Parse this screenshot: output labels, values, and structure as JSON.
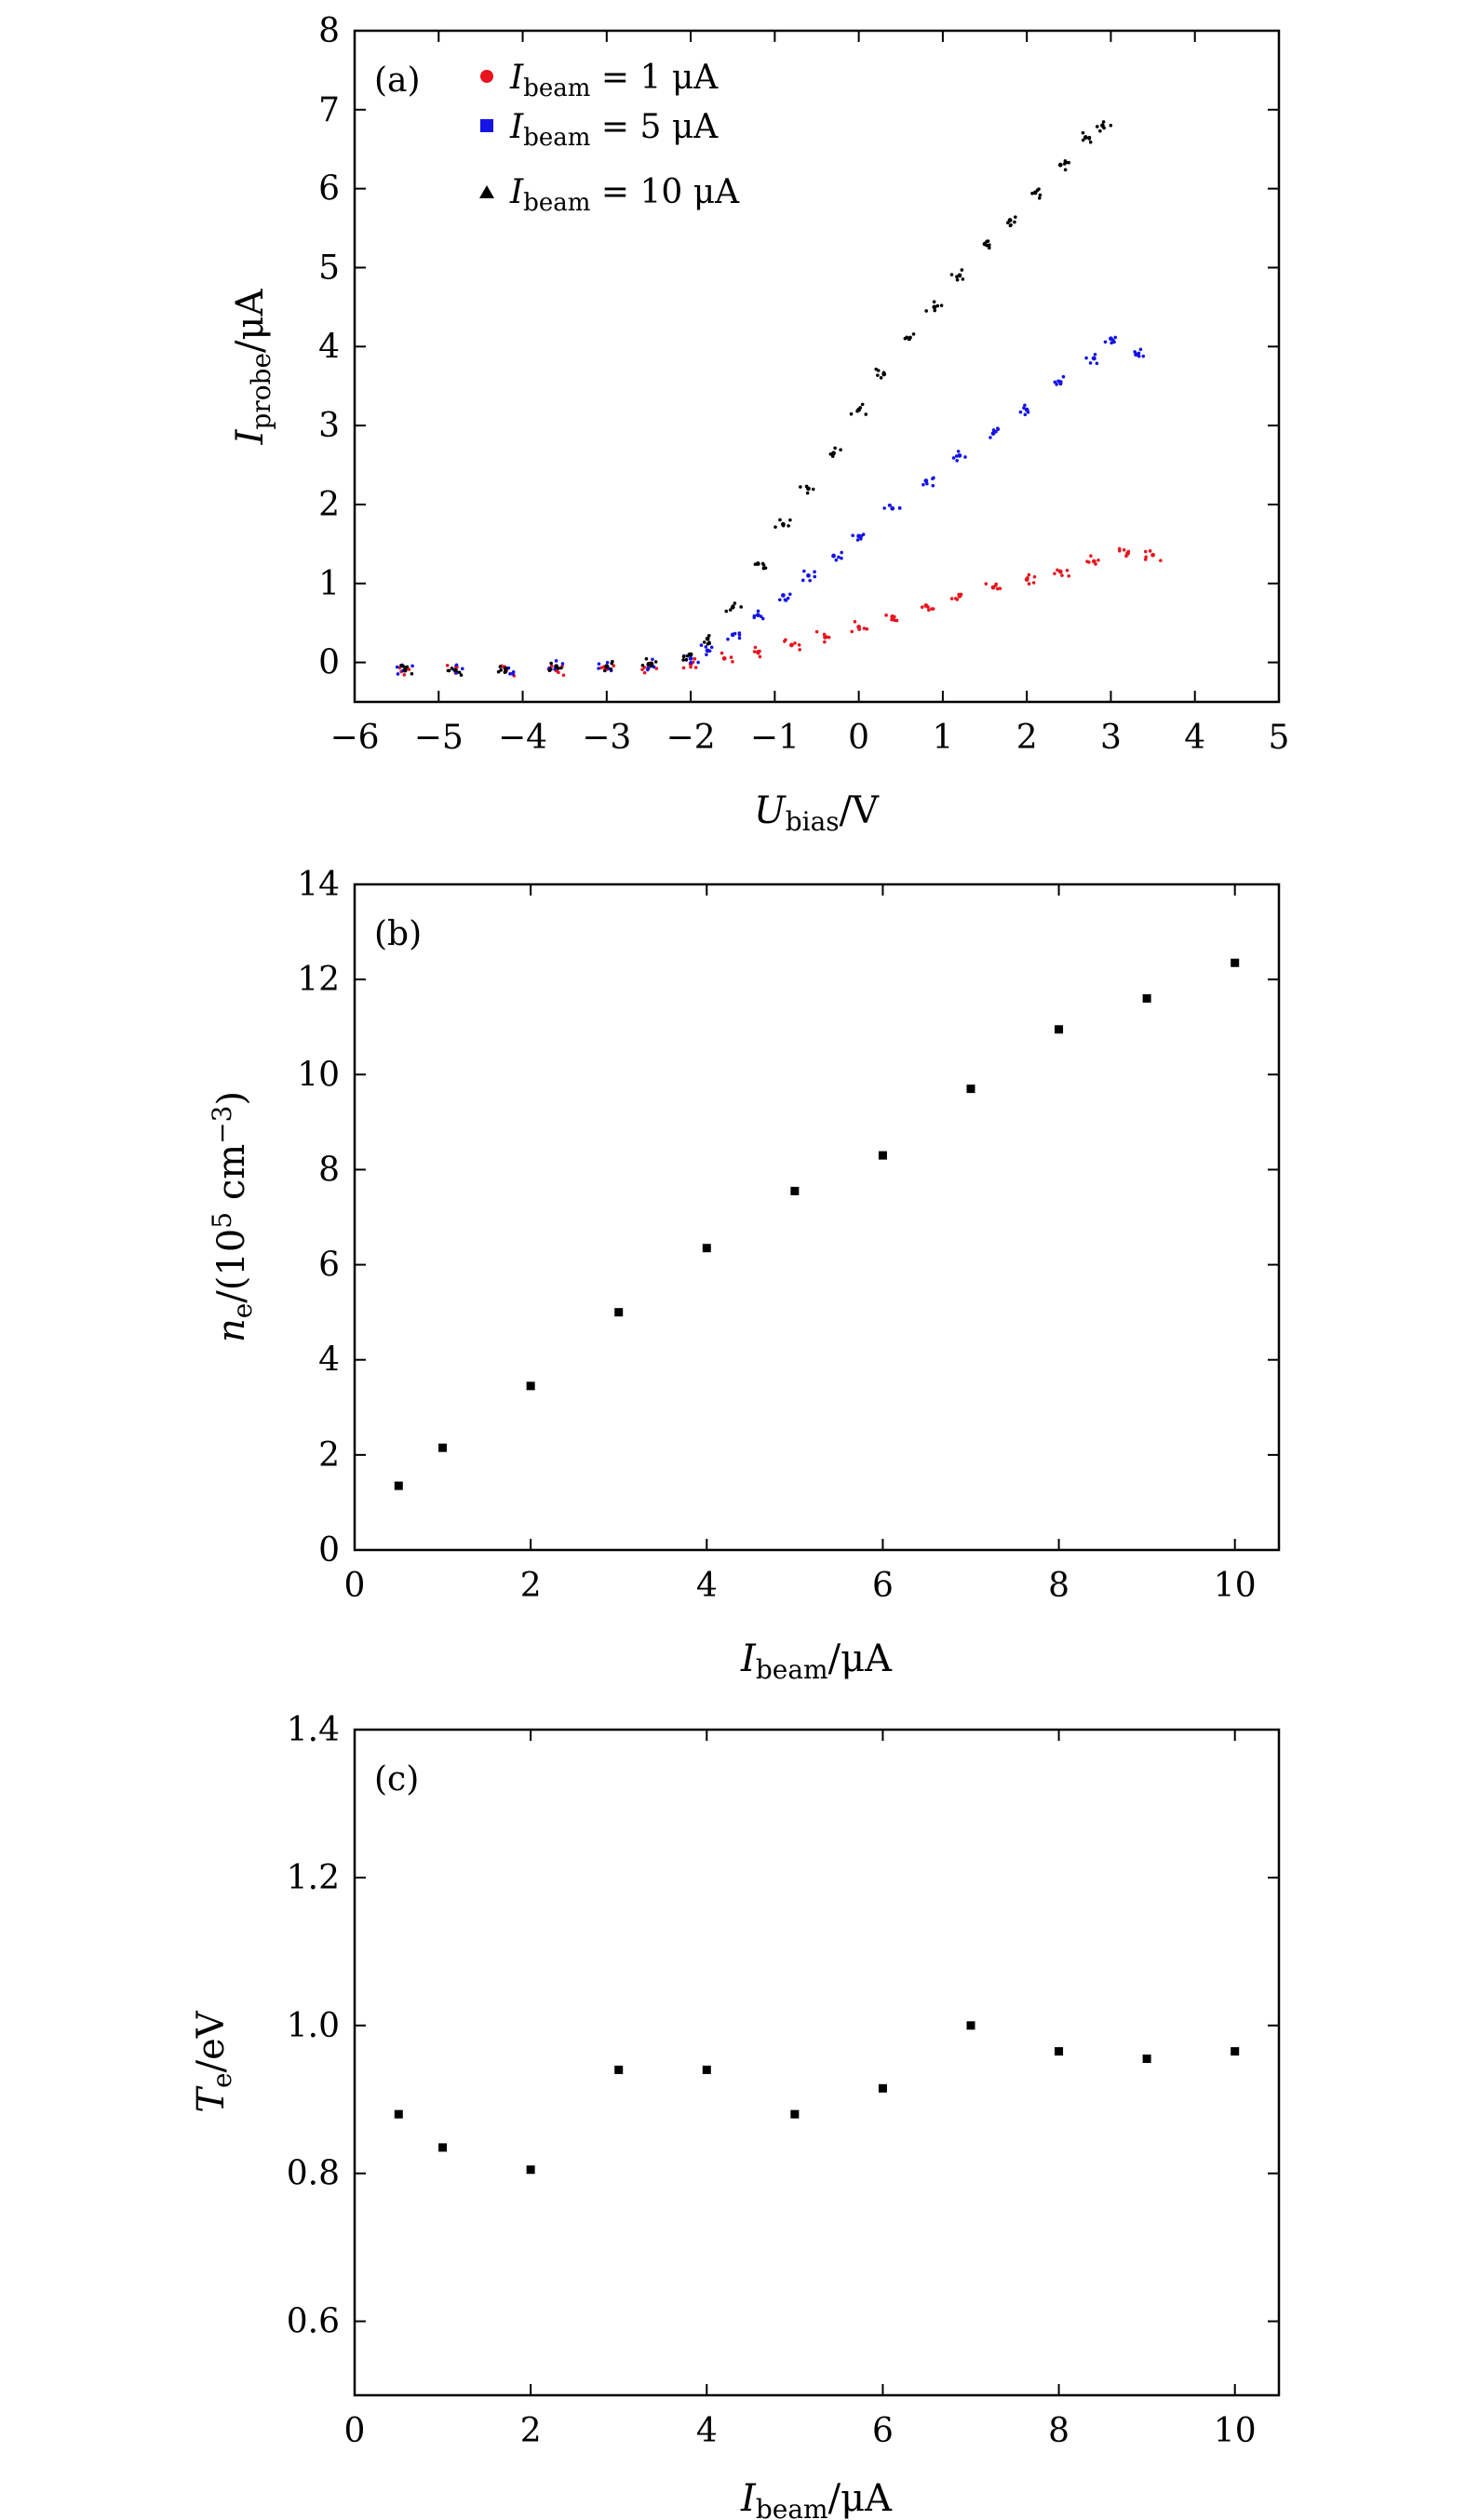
{
  "chart_data": [
    {
      "id": "a",
      "type": "scatter",
      "panel_label": "(a)",
      "xlabel": {
        "main": "U",
        "sub": "bias",
        "tail": "/V"
      },
      "ylabel": {
        "main": "I",
        "sub": "probe",
        "tail": "/μA"
      },
      "xlim": [
        -6,
        5
      ],
      "ylim": [
        -0.5,
        8
      ],
      "xticks": [
        -6,
        -5,
        -4,
        -3,
        -2,
        -1,
        0,
        1,
        2,
        3,
        4,
        5
      ],
      "xtick_labels": [
        "−6",
        "−5",
        "−4",
        "−3",
        "−2",
        "−1",
        "0",
        "1",
        "2",
        "3",
        "4",
        "5"
      ],
      "yticks": [
        0,
        1,
        2,
        3,
        4,
        5,
        6,
        7,
        8
      ],
      "ytick_labels": [
        "0",
        "1",
        "2",
        "3",
        "4",
        "5",
        "6",
        "7",
        "8"
      ],
      "legend_position": "top-left",
      "series": [
        {
          "name": "I_beam = 1 μA",
          "legend": {
            "main": "I",
            "sub": "beam",
            "tail": " = 1  μA"
          },
          "marker": "circle",
          "color": "#e8141e",
          "x": [
            -5.4,
            -4.8,
            -4.2,
            -3.6,
            -3.0,
            -2.5,
            -2.0,
            -1.6,
            -1.2,
            -0.8,
            -0.4,
            0.0,
            0.4,
            0.8,
            1.2,
            1.6,
            2.0,
            2.4,
            2.8,
            3.2,
            3.5
          ],
          "y": [
            -0.1,
            -0.1,
            -0.1,
            -0.1,
            -0.08,
            -0.06,
            -0.02,
            0.05,
            0.13,
            0.22,
            0.32,
            0.45,
            0.58,
            0.72,
            0.84,
            0.95,
            1.05,
            1.15,
            1.28,
            1.38,
            1.36
          ]
        },
        {
          "name": "I_beam = 5 μA",
          "legend": {
            "main": "I",
            "sub": "beam",
            "tail": " = 5  μA"
          },
          "marker": "square",
          "color": "#1414e6",
          "x": [
            -5.4,
            -4.8,
            -4.2,
            -3.6,
            -3.0,
            -2.5,
            -2.0,
            -1.8,
            -1.5,
            -1.2,
            -0.9,
            -0.6,
            -0.3,
            0.0,
            0.4,
            0.8,
            1.2,
            1.6,
            2.0,
            2.4,
            2.8,
            3.0,
            3.3
          ],
          "y": [
            -0.1,
            -0.1,
            -0.08,
            -0.05,
            -0.05,
            -0.03,
            0.05,
            0.15,
            0.35,
            0.6,
            0.85,
            1.1,
            1.35,
            1.6,
            1.95,
            2.3,
            2.62,
            2.9,
            3.2,
            3.55,
            3.85,
            4.1,
            3.9
          ]
        },
        {
          "name": "I_beam = 10 μA",
          "legend": {
            "main": "I",
            "sub": "beam",
            "tail": " = 10  μA"
          },
          "marker": "triangle",
          "color": "#000000",
          "x": [
            -5.4,
            -4.8,
            -4.2,
            -3.6,
            -3.0,
            -2.5,
            -2.0,
            -1.8,
            -1.5,
            -1.2,
            -0.9,
            -0.6,
            -0.3,
            0.0,
            0.3,
            0.6,
            0.9,
            1.2,
            1.5,
            1.8,
            2.1,
            2.4,
            2.7,
            2.9
          ],
          "y": [
            -0.1,
            -0.1,
            -0.08,
            -0.05,
            -0.05,
            -0.02,
            0.1,
            0.3,
            0.7,
            1.25,
            1.75,
            2.2,
            2.65,
            3.2,
            3.65,
            4.1,
            4.5,
            4.9,
            5.3,
            5.6,
            5.95,
            6.3,
            6.65,
            6.8
          ]
        }
      ]
    },
    {
      "id": "b",
      "type": "scatter",
      "panel_label": "(b)",
      "xlabel": {
        "main": "I",
        "sub": "beam",
        "tail": "/μA"
      },
      "ylabel": {
        "main": "n",
        "sub": "e",
        "mid": "/(10",
        "sup": "5",
        "tail": " cm",
        "sup2": "−3",
        "end": ")"
      },
      "xlim": [
        0,
        10.5
      ],
      "ylim": [
        0,
        14
      ],
      "xticks": [
        0,
        2,
        4,
        6,
        8,
        10
      ],
      "xtick_labels": [
        "0",
        "2",
        "4",
        "6",
        "8",
        "10"
      ],
      "yticks": [
        0,
        2,
        4,
        6,
        8,
        10,
        12,
        14
      ],
      "ytick_labels": [
        "0",
        "2",
        "4",
        "6",
        "8",
        "10",
        "12",
        "14"
      ],
      "series": [
        {
          "name": "n_e",
          "marker": "square",
          "color": "#000000",
          "x": [
            0.5,
            1,
            2,
            3,
            4,
            5,
            6,
            7,
            8,
            9,
            10
          ],
          "y": [
            1.35,
            2.15,
            3.45,
            5.0,
            6.35,
            7.55,
            8.3,
            9.7,
            10.95,
            11.6,
            12.35
          ]
        }
      ]
    },
    {
      "id": "c",
      "type": "scatter",
      "panel_label": "(c)",
      "xlabel": {
        "main": "I",
        "sub": "beam",
        "tail": "/μA"
      },
      "ylabel": {
        "main": "T",
        "sub": "e",
        "tail": "/eV"
      },
      "xlim": [
        0,
        10.5
      ],
      "ylim": [
        0.5,
        1.4
      ],
      "xticks": [
        0,
        2,
        4,
        6,
        8,
        10
      ],
      "xtick_labels": [
        "0",
        "2",
        "4",
        "6",
        "8",
        "10"
      ],
      "yticks": [
        0.6,
        0.8,
        1.0,
        1.2,
        1.4
      ],
      "ytick_labels": [
        "0.6",
        "0.8",
        "1.0",
        "1.2",
        "1.4"
      ],
      "series": [
        {
          "name": "T_e",
          "marker": "square",
          "color": "#000000",
          "x": [
            0.5,
            1,
            2,
            3,
            4,
            5,
            6,
            7,
            8,
            9,
            10
          ],
          "y": [
            0.88,
            0.835,
            0.805,
            0.94,
            0.94,
            0.88,
            0.915,
            1.0,
            0.965,
            0.955,
            0.965
          ]
        }
      ]
    }
  ]
}
